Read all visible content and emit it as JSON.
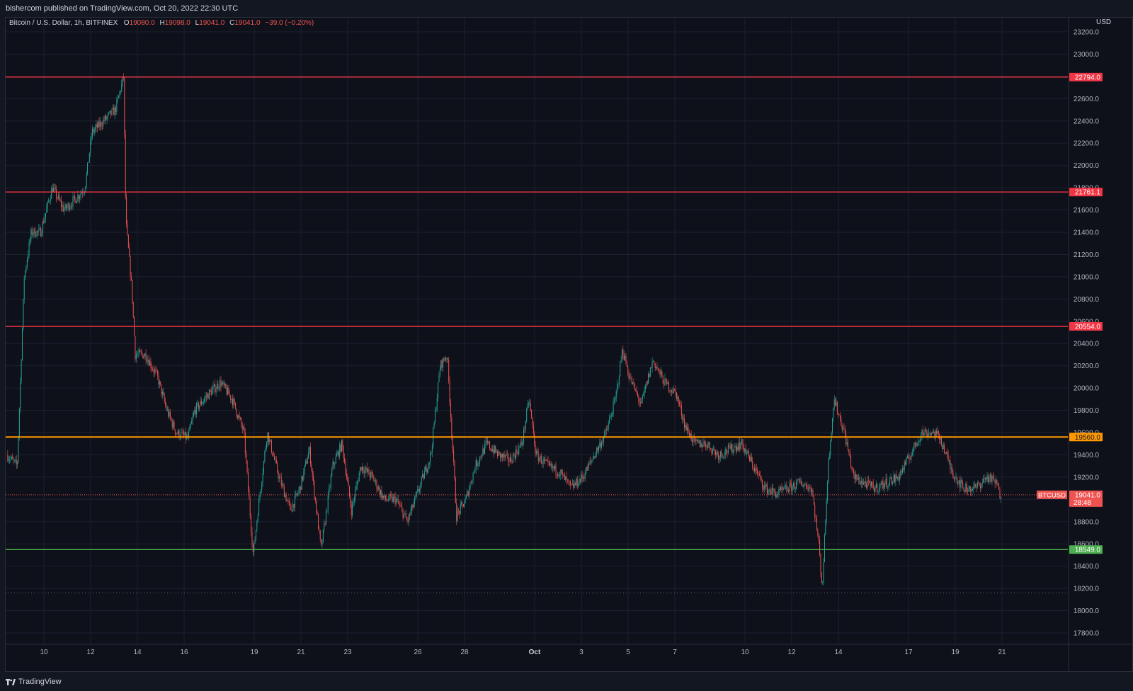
{
  "publish_line": "bishercom published on TradingView.com, Oct 20, 2022 22:30 UTC",
  "ohlc": {
    "symbol": "Bitcoin / U.S. Dollar, 1h, BITFINEX",
    "o_label": "O",
    "o_value": "19080.0",
    "h_label": "H",
    "h_value": "19098.0",
    "l_label": "L",
    "l_value": "19041.0",
    "c_label": "C",
    "c_value": "19041.0",
    "change": "−39.0 (−0.20%)"
  },
  "brand": "TradingView",
  "currency_label": "USD",
  "colors": {
    "up": "#26a69a",
    "down": "#ef5350",
    "resistance": "#f23645",
    "pivot": "#ff9800",
    "support": "#4caf50",
    "grid": "#1c2030",
    "axis_text": "#b2b5be"
  },
  "chart_data": {
    "type": "candlestick",
    "title": "Bitcoin / U.S. Dollar, 1h, BITFINEX",
    "ylim": [
      17600,
      23300
    ],
    "y_ticks": [
      17800,
      18000,
      18200,
      18400,
      18600,
      18800,
      19000,
      19200,
      19400,
      19600,
      19800,
      20000,
      20200,
      20400,
      20600,
      20800,
      21000,
      21200,
      21400,
      21600,
      21800,
      22000,
      22200,
      22400,
      22600,
      22800,
      23000,
      23200
    ],
    "y_tick_labels": [
      "17800.0",
      "18000.0",
      "18200.0",
      "18400.0",
      "18600.0",
      "18800.0",
      "19000.0",
      "19200.0",
      "19400.0",
      "19600.0",
      "19800.0",
      "20000.0",
      "20200.0",
      "20400.0",
      "20600.0",
      "20800.0",
      "21000.0",
      "21200.0",
      "21400.0",
      "21600.0",
      "21800.0",
      "22000.0",
      "22200.0",
      "22400.0",
      "22600.0",
      "22800.0",
      "23000.0",
      "23200.0"
    ],
    "x_range_days": [
      8.4,
      55.0
    ],
    "x_ticks": [
      {
        "day": 10,
        "label": "10"
      },
      {
        "day": 12,
        "label": "12"
      },
      {
        "day": 14,
        "label": "14"
      },
      {
        "day": 16,
        "label": "16"
      },
      {
        "day": 19,
        "label": "19"
      },
      {
        "day": 21,
        "label": "21"
      },
      {
        "day": 23,
        "label": "23"
      },
      {
        "day": 26,
        "label": "26"
      },
      {
        "day": 28,
        "label": "28"
      },
      {
        "day": 31,
        "label": "Oct"
      },
      {
        "day": 33,
        "label": "3"
      },
      {
        "day": 35,
        "label": "5"
      },
      {
        "day": 37,
        "label": "7"
      },
      {
        "day": 40,
        "label": "10"
      },
      {
        "day": 42,
        "label": "12"
      },
      {
        "day": 44,
        "label": "14"
      },
      {
        "day": 47,
        "label": "17"
      },
      {
        "day": 49,
        "label": "19"
      },
      {
        "day": 51,
        "label": "21"
      }
    ],
    "price_path": [
      [
        8.45,
        19400
      ],
      [
        8.9,
        19300
      ],
      [
        9.2,
        21000
      ],
      [
        9.5,
        21400
      ],
      [
        9.9,
        21400
      ],
      [
        10.4,
        21800
      ],
      [
        10.9,
        21600
      ],
      [
        11.4,
        21700
      ],
      [
        11.8,
        21800
      ],
      [
        12.1,
        22300
      ],
      [
        12.6,
        22400
      ],
      [
        13.1,
        22500
      ],
      [
        13.45,
        22794
      ],
      [
        13.55,
        21500
      ],
      [
        13.8,
        20900
      ],
      [
        13.95,
        20300
      ],
      [
        14.4,
        20300
      ],
      [
        14.9,
        20100
      ],
      [
        15.3,
        19800
      ],
      [
        15.7,
        19600
      ],
      [
        16.2,
        19550
      ],
      [
        16.5,
        19800
      ],
      [
        17.1,
        19950
      ],
      [
        17.6,
        20050
      ],
      [
        18.1,
        19900
      ],
      [
        18.6,
        19600
      ],
      [
        19.0,
        18500
      ],
      [
        19.2,
        18900
      ],
      [
        19.6,
        19600
      ],
      [
        20.1,
        19200
      ],
      [
        20.6,
        18900
      ],
      [
        21.0,
        19100
      ],
      [
        21.4,
        19450
      ],
      [
        21.9,
        18550
      ],
      [
        22.4,
        19300
      ],
      [
        22.8,
        19500
      ],
      [
        23.2,
        18900
      ],
      [
        23.6,
        19300
      ],
      [
        24.1,
        19200
      ],
      [
        24.6,
        19000
      ],
      [
        25.1,
        19000
      ],
      [
        25.6,
        18800
      ],
      [
        26.1,
        19100
      ],
      [
        26.6,
        19400
      ],
      [
        27.0,
        20200
      ],
      [
        27.3,
        20300
      ],
      [
        27.7,
        18850
      ],
      [
        28.1,
        19000
      ],
      [
        28.5,
        19300
      ],
      [
        29.0,
        19500
      ],
      [
        29.5,
        19400
      ],
      [
        30.0,
        19350
      ],
      [
        30.5,
        19500
      ],
      [
        30.8,
        19900
      ],
      [
        31.1,
        19400
      ],
      [
        31.6,
        19300
      ],
      [
        32.1,
        19250
      ],
      [
        32.6,
        19100
      ],
      [
        33.1,
        19200
      ],
      [
        33.6,
        19400
      ],
      [
        34.1,
        19600
      ],
      [
        34.5,
        19900
      ],
      [
        34.8,
        20350
      ],
      [
        35.1,
        20100
      ],
      [
        35.6,
        19850
      ],
      [
        36.1,
        20250
      ],
      [
        36.6,
        20050
      ],
      [
        37.1,
        19950
      ],
      [
        37.5,
        19650
      ],
      [
        37.9,
        19500
      ],
      [
        38.4,
        19500
      ],
      [
        38.9,
        19400
      ],
      [
        39.4,
        19450
      ],
      [
        39.9,
        19500
      ],
      [
        40.4,
        19300
      ],
      [
        40.9,
        19100
      ],
      [
        41.4,
        19050
      ],
      [
        41.9,
        19100
      ],
      [
        42.4,
        19150
      ],
      [
        42.9,
        19100
      ],
      [
        43.2,
        18600
      ],
      [
        43.35,
        18200
      ],
      [
        43.6,
        19300
      ],
      [
        43.85,
        19900
      ],
      [
        44.3,
        19600
      ],
      [
        44.7,
        19200
      ],
      [
        45.1,
        19150
      ],
      [
        45.6,
        19100
      ],
      [
        46.1,
        19150
      ],
      [
        46.6,
        19200
      ],
      [
        47.0,
        19350
      ],
      [
        47.6,
        19600
      ],
      [
        48.1,
        19600
      ],
      [
        48.4,
        19550
      ],
      [
        48.9,
        19250
      ],
      [
        49.4,
        19100
      ],
      [
        49.9,
        19100
      ],
      [
        50.4,
        19200
      ],
      [
        50.8,
        19150
      ],
      [
        50.95,
        19041
      ]
    ],
    "horizontal_levels": [
      {
        "price": 22794,
        "label": "22794.0",
        "kind": "resistance"
      },
      {
        "price": 21761.1,
        "label": "21761.1",
        "kind": "resistance"
      },
      {
        "price": 20554,
        "label": "20554.0",
        "kind": "resistance"
      },
      {
        "price": 19560,
        "label": "19560.0",
        "kind": "pivot"
      },
      {
        "price": 18549,
        "label": "18549.0",
        "kind": "support"
      }
    ],
    "last_price": {
      "symbol": "BTCUSD",
      "price": 19041,
      "label": "19041.0",
      "countdown": "28:48"
    },
    "dotted_low": 18160
  }
}
